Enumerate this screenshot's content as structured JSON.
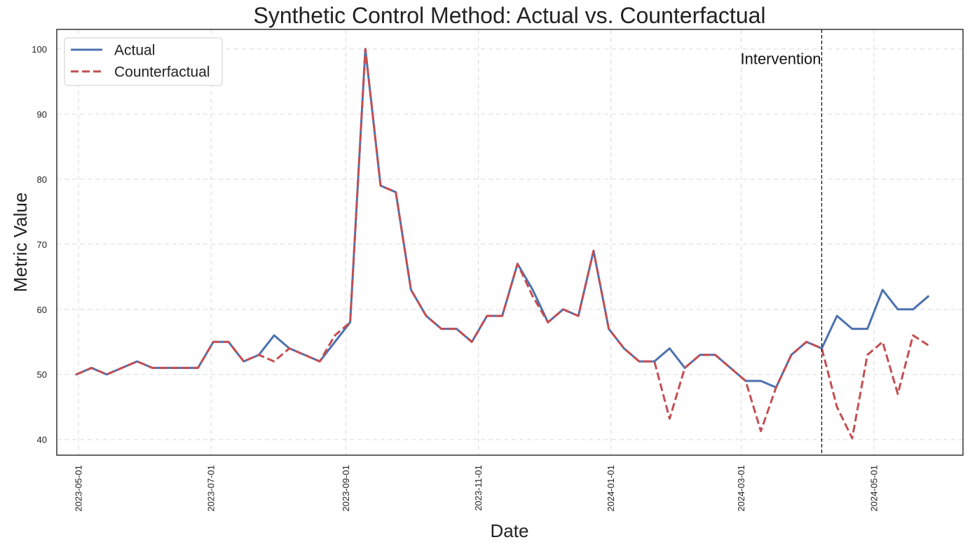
{
  "chart_data": {
    "type": "line",
    "title": "Synthetic Control Method: Actual vs. Counterfactual",
    "xlabel": "Date",
    "ylabel": "Metric Value",
    "xlim": [
      "2023-04-21",
      "2024-06-11"
    ],
    "ylim": [
      37.6,
      103.0
    ],
    "x_ticks": [
      "2023-05-01",
      "2023-07-01",
      "2023-09-01",
      "2023-11-01",
      "2024-01-01",
      "2024-03-01",
      "2024-05-01"
    ],
    "y_ticks": [
      40,
      50,
      60,
      70,
      80,
      90,
      100
    ],
    "grid": true,
    "legend_position": "top-left",
    "intervention": {
      "date": "2024-04-07",
      "label": "Intervention"
    },
    "x": [
      "2023-04-30",
      "2023-05-07",
      "2023-05-14",
      "2023-05-21",
      "2023-05-28",
      "2023-06-04",
      "2023-06-11",
      "2023-06-18",
      "2023-06-25",
      "2023-07-02",
      "2023-07-09",
      "2023-07-16",
      "2023-07-23",
      "2023-07-30",
      "2023-08-06",
      "2023-08-13",
      "2023-08-20",
      "2023-08-27",
      "2023-09-03",
      "2023-09-10",
      "2023-09-17",
      "2023-09-24",
      "2023-10-01",
      "2023-10-08",
      "2023-10-15",
      "2023-10-22",
      "2023-10-29",
      "2023-11-05",
      "2023-11-12",
      "2023-11-19",
      "2023-11-26",
      "2023-12-03",
      "2023-12-10",
      "2023-12-17",
      "2023-12-24",
      "2023-12-31",
      "2024-01-07",
      "2024-01-14",
      "2024-01-21",
      "2024-01-28",
      "2024-02-04",
      "2024-02-11",
      "2024-02-18",
      "2024-02-25",
      "2024-03-03",
      "2024-03-10",
      "2024-03-17",
      "2024-03-24",
      "2024-03-31",
      "2024-04-07",
      "2024-04-14",
      "2024-04-21",
      "2024-04-28",
      "2024-05-05",
      "2024-05-12",
      "2024-05-19",
      "2024-05-26"
    ],
    "series": [
      {
        "name": "Actual",
        "color": "#4c72b0",
        "style": "solid",
        "values": [
          50,
          51,
          50,
          51,
          52,
          51,
          51,
          51,
          51,
          55,
          55,
          52,
          53,
          56,
          54,
          53,
          52,
          55,
          58,
          100,
          79,
          78,
          63,
          59,
          57,
          57,
          55,
          59,
          59,
          67,
          63,
          58,
          60,
          59,
          69,
          57,
          54,
          52,
          52,
          54,
          51,
          53,
          53,
          51,
          49,
          49,
          48,
          53,
          55,
          54,
          59,
          57,
          57,
          63,
          60,
          60,
          62
        ]
      },
      {
        "name": "Counterfactual",
        "color": "#c44e52",
        "style": "dashed",
        "values": [
          50,
          51,
          50,
          51,
          52,
          51,
          51,
          51,
          51,
          55,
          55,
          52,
          53,
          52,
          54,
          53,
          52,
          56,
          58,
          100,
          79,
          78,
          63,
          59,
          57,
          57,
          55,
          59,
          59,
          67,
          62,
          58,
          60,
          59,
          69,
          57,
          54,
          52,
          52,
          43.2,
          51,
          53,
          53,
          51,
          49,
          41.3,
          48,
          53,
          55,
          54,
          45,
          40.2,
          53,
          55,
          47,
          56,
          54.5
        ]
      }
    ]
  }
}
